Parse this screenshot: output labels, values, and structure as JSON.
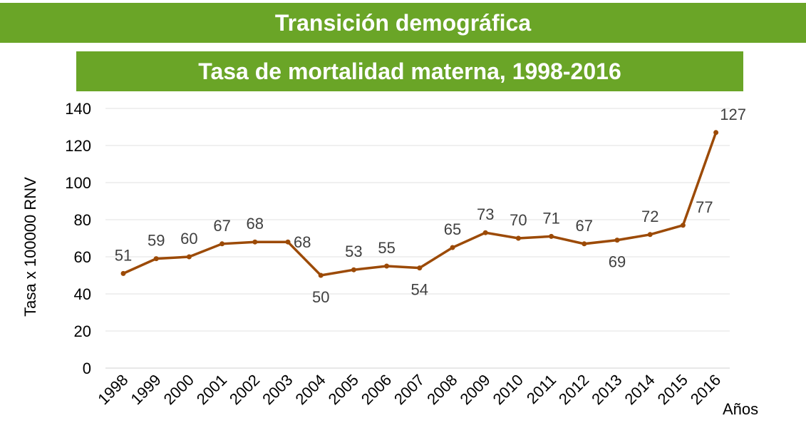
{
  "header": {
    "title": "Transición demográfica"
  },
  "chart_data": {
    "type": "line",
    "title": "Tasa de mortalidad materna, 1998-2016",
    "ylabel": "Tasa x 100000 RNV",
    "xlabel": "Años",
    "x": [
      "1998",
      "1999",
      "2000",
      "2001",
      "2002",
      "2003",
      "2004",
      "2005",
      "2006",
      "2007",
      "2008",
      "2009",
      "2010",
      "2011",
      "2012",
      "2013",
      "2014",
      "2015",
      "2016"
    ],
    "series": [
      {
        "values": [
          51,
          59,
          60,
          67,
          68,
          68,
          50,
          53,
          55,
          54,
          65,
          73,
          70,
          71,
          67,
          69,
          72,
          77,
          127
        ]
      }
    ],
    "data_labels": [
      "51",
      "59",
      "60",
      "67",
      "68",
      "68",
      "50",
      "53",
      "55",
      "54",
      "65",
      "73",
      "70",
      "71",
      "67",
      "69",
      "72",
      "77",
      "127"
    ],
    "ylim": [
      0,
      140
    ],
    "yticks": [
      0,
      20,
      40,
      60,
      80,
      100,
      120,
      140
    ],
    "grid": true,
    "line_color": "#9c4a06",
    "header_color": "#6aa527"
  }
}
